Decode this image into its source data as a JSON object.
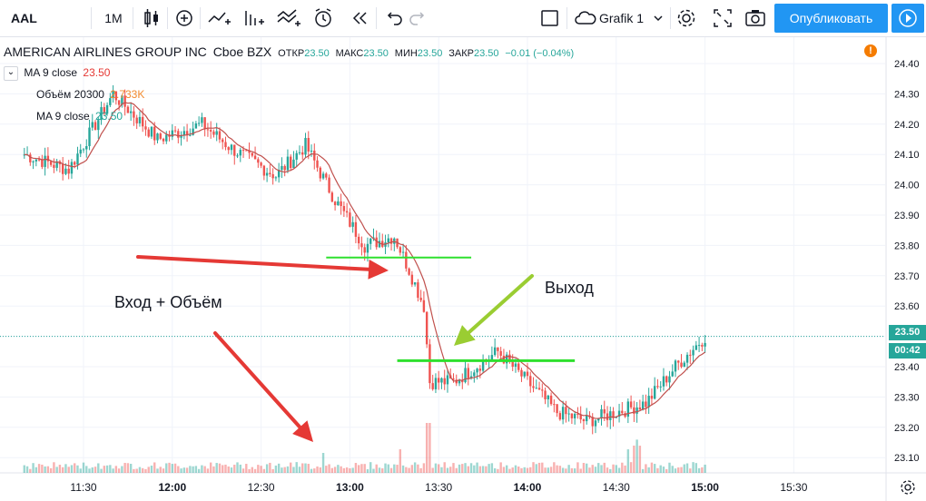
{
  "toolbar": {
    "symbol": "AAL",
    "interval": "1M",
    "layout_name": "Grafik 1",
    "publish_label": "Опубликовать",
    "icons": [
      "candles-icon",
      "add-indicator-icon",
      "compare-icon",
      "indicators-icon",
      "strategy-icon",
      "alert-icon",
      "replay-icon",
      "undo-icon",
      "redo-icon",
      "rectangle-icon",
      "cloud-icon",
      "gear-icon",
      "fullscreen-icon",
      "camera-icon",
      "play-icon"
    ]
  },
  "legend": {
    "title": "AMERICAN AIRLINES GROUP INC",
    "exchange": "Cboe BZX",
    "open_label": "ОТКР",
    "open": "23.50",
    "high_label": "МАКС",
    "high": "23.50",
    "low_label": "МИН",
    "low": "23.50",
    "close_label": "ЗАКР",
    "close": "23.50",
    "change": "−0.01 (−0.04%)",
    "ma1_label": "MA 9 close",
    "ma1_value": "23.50",
    "vol_label": "Объём 20",
    "vol_sub": "300",
    "vol_value": "2.733K",
    "ma2_label": "MA 9 close",
    "ma2_value": "23.50"
  },
  "colors": {
    "up": "#26a69a",
    "down": "#ef5350",
    "ma": "#c0504d",
    "green_line": "#2ee02e",
    "arrow_red": "#e53935",
    "arrow_green": "#9acd32",
    "accent": "#2196f3"
  },
  "annotations": {
    "entry_text": "Вход + Объём",
    "exit_text": "Выход"
  },
  "price_label": "23.50",
  "countdown_label": "00:42",
  "chart_data": {
    "type": "candlestick",
    "symbol": "AAL",
    "interval": "1 minute",
    "x_ticks": [
      "11:30",
      "12:00",
      "12:30",
      "13:00",
      "13:30",
      "14:00",
      "14:30",
      "15:00",
      "15:30"
    ],
    "y_ticks": [
      "24.40",
      "24.30",
      "24.20",
      "24.10",
      "24.00",
      "23.90",
      "23.80",
      "23.70",
      "23.60",
      "23.50",
      "23.40",
      "23.30",
      "23.20",
      "23.10"
    ],
    "ylim": [
      23.05,
      24.44
    ],
    "key_closes": [
      {
        "time": "11:10",
        "price": 24.1
      },
      {
        "time": "11:25",
        "price": 24.05
      },
      {
        "time": "11:40",
        "price": 24.3
      },
      {
        "time": "11:55",
        "price": 24.15
      },
      {
        "time": "12:10",
        "price": 24.2
      },
      {
        "time": "12:20",
        "price": 24.12
      },
      {
        "time": "12:35",
        "price": 24.03
      },
      {
        "time": "12:45",
        "price": 24.13
      },
      {
        "time": "12:55",
        "price": 23.95
      },
      {
        "time": "13:05",
        "price": 23.8
      },
      {
        "time": "13:15",
        "price": 23.83
      },
      {
        "time": "13:20",
        "price": 23.72
      },
      {
        "time": "13:25",
        "price": 23.6
      },
      {
        "time": "13:27",
        "price": 23.35
      },
      {
        "time": "13:35",
        "price": 23.35
      },
      {
        "time": "13:50",
        "price": 23.45
      },
      {
        "time": "14:00",
        "price": 23.35
      },
      {
        "time": "14:10",
        "price": 23.25
      },
      {
        "time": "14:20",
        "price": 23.22
      },
      {
        "time": "14:30",
        "price": 23.25
      },
      {
        "time": "14:40",
        "price": 23.28
      },
      {
        "time": "14:50",
        "price": 23.4
      },
      {
        "time": "15:00",
        "price": 23.5
      }
    ],
    "horizontal_levels": [
      23.76,
      23.42
    ],
    "last_price": 23.5
  }
}
